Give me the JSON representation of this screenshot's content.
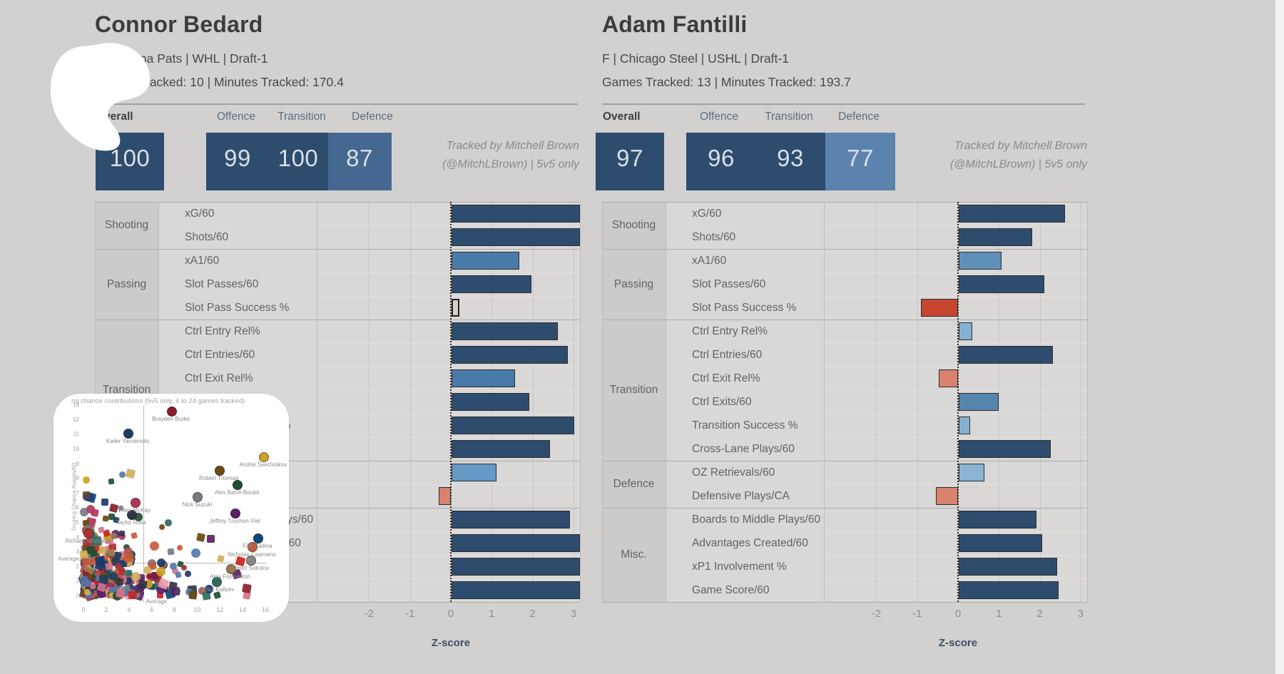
{
  "ui": {
    "header_labels": {
      "overall": "Overall",
      "offence": "Offence",
      "transition": "Transition",
      "defence": "Defence"
    },
    "credit": {
      "line1": "Tracked by Mitchell Brown",
      "line2": "(@MitchLBrown) | 5v5 only"
    },
    "axis": {
      "ticks": [
        "-2",
        "-1",
        "0",
        "1",
        "2",
        "3"
      ],
      "label": "Z-score"
    }
  },
  "players": [
    {
      "name": "Connor Bedard",
      "bio": "C | Regina Pats | WHL | Draft-1",
      "tracked": "Games Tracked: 10 | Minutes Tracked: 170.4",
      "scores": {
        "overall": "100",
        "offence": "99",
        "transition": "100",
        "defence": "87"
      }
    },
    {
      "name": "Adam Fantilli",
      "bio": "F | Chicago Steel | USHL | Draft-1",
      "tracked": "Games Tracked: 13 | Minutes Tracked: 193.7",
      "scores": {
        "overall": "97",
        "offence": "96",
        "transition": "93",
        "defence": "77"
      }
    }
  ],
  "sections": [
    {
      "label": "Shooting",
      "rows": [
        "xG/60",
        "Shots/60"
      ]
    },
    {
      "label": "Passing",
      "rows": [
        "xA1/60",
        "Slot Passes/60",
        "Slot Pass Success %"
      ]
    },
    {
      "label": "Transition",
      "rows": [
        "Ctrl Entry Rel%",
        "Ctrl Entries/60",
        "Ctrl Exit Rel%",
        "Ctrl Exits/60",
        "Transition Success %",
        "Cross-Lane Plays/60"
      ]
    },
    {
      "label": "Defence",
      "rows": [
        "OZ Retrievals/60",
        "Defensive Plays/CA"
      ]
    },
    {
      "label": "Misc.",
      "rows": [
        "Boards to Middle Plays/60",
        "Advantages Created/60",
        "xP1 Involvement %",
        "Game Score/60"
      ]
    }
  ],
  "colors": {
    "navy": "#2e4d6e",
    "medium_blue": "#4a7aa8",
    "light_blue": "#6699c6",
    "lighter_blue": "#85b0d4",
    "salmon": "#d9826f",
    "red": "#c5452f",
    "highlight_fill": "#d8cfc8",
    "score_navy": "#2e4d6e",
    "score_steel_87": "#44688f",
    "score_steel_77": "#5b83ad"
  },
  "chart_data": [
    {
      "type": "bar",
      "orientation": "horizontal",
      "title": "Connor Bedard",
      "xlabel": "Z-score",
      "xlim": [
        -3.3,
        3.16
      ],
      "categories": [
        "xG/60",
        "Shots/60",
        "xA1/60",
        "Slot Passes/60",
        "Slot Pass Success %",
        "Ctrl Entry Rel%",
        "Ctrl Entries/60",
        "Ctrl Exit Rel%",
        "Ctrl Exits/60",
        "Transition Success %",
        "Cross-Lane Plays/60",
        "OZ Retrievals/60",
        "Defensive Plays/CA",
        "Boards to Middle Plays/60",
        "Advantages Created/60",
        "xP1 Involvement %",
        "Game Score/60"
      ],
      "values": [
        3.15,
        3.15,
        1.65,
        1.95,
        0.2,
        2.6,
        2.85,
        1.55,
        1.9,
        3.0,
        2.4,
        1.1,
        -0.3,
        2.9,
        3.15,
        3.15,
        3.15
      ],
      "bar_colors": [
        "#2e4d6e",
        "#2e4d6e",
        "#4a7aa8",
        "#2e4d6e",
        "#d8cfc8",
        "#2e4d6e",
        "#2e4d6e",
        "#4a7aa8",
        "#2e4d6e",
        "#2e4d6e",
        "#2e4d6e",
        "#6699c6",
        "#d9826f",
        "#2e4d6e",
        "#2e4d6e",
        "#2e4d6e",
        "#2e4d6e"
      ],
      "highlight_index": 4
    },
    {
      "type": "bar",
      "orientation": "horizontal",
      "title": "Adam Fantilli",
      "xlabel": "Z-score",
      "xlim": [
        -3.3,
        3.16
      ],
      "categories": [
        "xG/60",
        "Shots/60",
        "xA1/60",
        "Slot Passes/60",
        "Slot Pass Success %",
        "Ctrl Entry Rel%",
        "Ctrl Entries/60",
        "Ctrl Exit Rel%",
        "Ctrl Exits/60",
        "Transition Success %",
        "Cross-Lane Plays/60",
        "OZ Retrievals/60",
        "Defensive Plays/CA",
        "Boards to Middle Plays/60",
        "Advantages Created/60",
        "xP1 Involvement %",
        "Game Score/60"
      ],
      "values": [
        2.6,
        1.8,
        1.05,
        2.1,
        -0.9,
        0.33,
        2.3,
        -0.47,
        0.98,
        0.28,
        2.25,
        0.63,
        -0.54,
        1.9,
        2.05,
        2.4,
        2.45
      ],
      "bar_colors": [
        "#2e4d6e",
        "#2e4d6e",
        "#5f90ba",
        "#2e4d6e",
        "#c5452f",
        "#85b0d4",
        "#2e4d6e",
        "#d9826f",
        "#5585ad",
        "#85b0d4",
        "#2e4d6e",
        "#8ab3d4",
        "#d9826f",
        "#2e4d6e",
        "#2e4d6e",
        "#2e4d6e",
        "#2e4d6e"
      ],
      "highlight_index": null
    },
    {
      "type": "scatter",
      "title_visible": "ng chance contributions (5v5 only, 6 to 24 games tracked)",
      "ylabel": "Scoring Chance Assists/60",
      "x_ticks": [
        0,
        2,
        4,
        6,
        8,
        10,
        12,
        14,
        16
      ],
      "y_ticks": [
        0,
        1,
        2,
        3,
        4,
        5,
        6,
        7,
        8,
        9,
        10,
        11,
        12,
        13
      ],
      "avg_x": 5.3,
      "avg_y": 2.3,
      "avg_label": "Average",
      "labeled_points": [
        {
          "name": "Brayden Burke",
          "x": 7.7,
          "y": 12.6
        },
        {
          "name": "Kailer Yamamoto",
          "x": 3.9,
          "y": 11.1
        },
        {
          "name": "Andrei Svechnikov",
          "x": 15.8,
          "y": 9.5
        },
        {
          "name": "Robert Thomas",
          "x": 11.9,
          "y": 8.6
        },
        {
          "name": "Alex Barré-Boulet",
          "x": 13.5,
          "y": 7.6
        },
        {
          "name": "Nick Suzuki",
          "x": 10.0,
          "y": 6.8
        },
        {
          "name": "Riley McKay",
          "x": 4.5,
          "y": 6.4
        },
        {
          "name": "Taylor Ross",
          "x": 4.2,
          "y": 5.6
        },
        {
          "name": "Jeffrey Truchon-Viel",
          "x": 13.3,
          "y": 5.7
        },
        {
          "name": "Richard Whittaker",
          "x": 0.4,
          "y": 4.3
        },
        {
          "name": "Filip Zadina",
          "x": 15.3,
          "y": 4.0
        },
        {
          "name": "Nicholas Caamano",
          "x": 14.8,
          "y": 3.4
        },
        {
          "name": "Dmitri Sokolov",
          "x": 14.7,
          "y": 2.5
        },
        {
          "name": "Alex Formenton",
          "x": 12.9,
          "y": 1.9
        },
        {
          "name": "Arthur Kaliyev",
          "x": 11.7,
          "y": 1.0
        }
      ]
    }
  ]
}
